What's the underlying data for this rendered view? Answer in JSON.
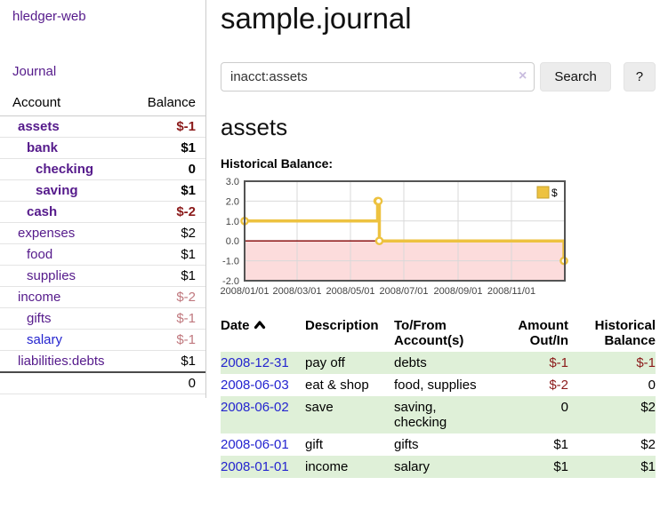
{
  "app": {
    "brand": "hledger-web",
    "nav_journal": "Journal"
  },
  "colors": {
    "link_purple": "#551a8b",
    "link_blue": "#2424cf",
    "negative_strong": "#8b1a1a",
    "negative_soft": "#c0787e",
    "row_green": "#dff0d8",
    "chart_line": "#edc240",
    "chart_negative_fill": "#fcdcdc",
    "chart_zero_line": "#800000",
    "button_bg": "#ececec"
  },
  "sidebar": {
    "table_headers": {
      "account": "Account",
      "balance": "Balance"
    },
    "accounts": [
      {
        "name": "assets",
        "balance": "$-1",
        "level": 0,
        "bold": true,
        "balance_style": "strong",
        "link": "purple"
      },
      {
        "name": "bank",
        "balance": "$1",
        "level": 1,
        "bold": true,
        "balance_style": "normal",
        "link": "purple"
      },
      {
        "name": "checking",
        "balance": "0",
        "level": 2,
        "bold": true,
        "balance_style": "normal",
        "link": "purple"
      },
      {
        "name": "saving",
        "balance": "$1",
        "level": 2,
        "bold": true,
        "balance_style": "normal",
        "link": "purple"
      },
      {
        "name": "cash",
        "balance": "$-2",
        "level": 1,
        "bold": true,
        "balance_style": "strong",
        "link": "purple"
      },
      {
        "name": "expenses",
        "balance": "$2",
        "level": 0,
        "bold": false,
        "balance_style": "normal",
        "link": "purple"
      },
      {
        "name": "food",
        "balance": "$1",
        "level": 1,
        "bold": false,
        "balance_style": "normal",
        "link": "purple"
      },
      {
        "name": "supplies",
        "balance": "$1",
        "level": 1,
        "bold": false,
        "balance_style": "normal",
        "link": "purple"
      },
      {
        "name": "income",
        "balance": "$-2",
        "level": 0,
        "bold": false,
        "balance_style": "soft",
        "link": "purple"
      },
      {
        "name": "gifts",
        "balance": "$-1",
        "level": 1,
        "bold": false,
        "balance_style": "soft",
        "link": "purple"
      },
      {
        "name": "salary",
        "balance": "$-1",
        "level": 1,
        "bold": false,
        "balance_style": "soft",
        "link": "blue"
      },
      {
        "name": "liabilities:debts",
        "balance": "$1",
        "level": 0,
        "bold": false,
        "balance_style": "normal",
        "link": "purple"
      }
    ],
    "total": "0"
  },
  "header": {
    "title": "sample.journal"
  },
  "search": {
    "query": "inacct:assets",
    "clear_icon": "×",
    "button": "Search",
    "help_button": "?"
  },
  "account_page": {
    "heading": "assets",
    "chart_label": "Historical Balance:"
  },
  "chart_data": {
    "type": "line",
    "title": "Historical Balance",
    "step": true,
    "grid": true,
    "legend": "top-right",
    "series": [
      {
        "name": "$",
        "points": [
          [
            "2008-01-01",
            1
          ],
          [
            "2008-06-01",
            2
          ],
          [
            "2008-06-02",
            2
          ],
          [
            "2008-06-03",
            0
          ],
          [
            "2008-12-31",
            -1
          ]
        ]
      }
    ],
    "x_range": [
      "2008-01-01",
      "2008-12-31"
    ],
    "ylim": [
      -2,
      3
    ],
    "yticks": [
      3.0,
      2.0,
      1.0,
      0.0,
      -1.0,
      -2.0
    ],
    "xticks": [
      "2008/01/01",
      "2008/03/01",
      "2008/05/01",
      "2008/07/01",
      "2008/09/01",
      "2008/11/01"
    ],
    "negative_region_shaded": true
  },
  "transactions": {
    "columns": {
      "date": "Date",
      "description": "Description",
      "accounts": "To/From Account(s)",
      "amount": "Amount Out/In",
      "balance": "Historical Balance"
    },
    "sort_icon": "chevron-up",
    "rows": [
      {
        "date": "2008-12-31",
        "description": "pay off",
        "accounts": "debts",
        "amount": "$-1",
        "amount_negative": true,
        "balance": "$-1",
        "balance_negative": true
      },
      {
        "date": "2008-06-03",
        "description": "eat & shop",
        "accounts": "food, supplies",
        "amount": "$-2",
        "amount_negative": true,
        "balance": "0",
        "balance_negative": false
      },
      {
        "date": "2008-06-02",
        "description": "save",
        "accounts": "saving, checking",
        "amount": "0",
        "amount_negative": false,
        "balance": "$2",
        "balance_negative": false
      },
      {
        "date": "2008-06-01",
        "description": "gift",
        "accounts": "gifts",
        "amount": "$1",
        "amount_negative": false,
        "balance": "$2",
        "balance_negative": false
      },
      {
        "date": "2008-01-01",
        "description": "income",
        "accounts": "salary",
        "amount": "$1",
        "amount_negative": false,
        "balance": "$1",
        "balance_negative": false
      }
    ]
  }
}
